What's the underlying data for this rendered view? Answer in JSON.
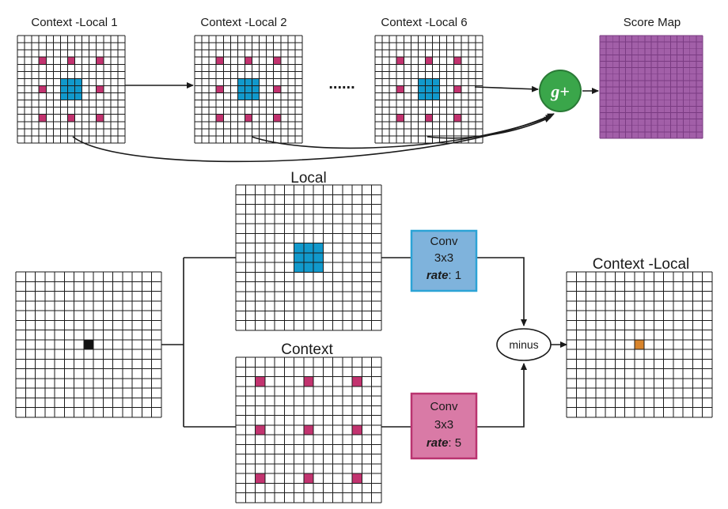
{
  "top_row": {
    "grids": [
      {
        "label": "Context -Local 1"
      },
      {
        "label": "Context -Local  2"
      },
      {
        "label": "Context -Local 6"
      }
    ],
    "ellipsis": "......",
    "combine_label": "g+",
    "score_map_label": "Score Map"
  },
  "bottom": {
    "local_label": "Local",
    "context_label": "Context",
    "output_label": "Context -Local",
    "conv_local": {
      "line1": "Conv",
      "line2": "3x3",
      "rate_key": "rate",
      "rate_value": ": 1"
    },
    "conv_context": {
      "line1": "Conv",
      "line2": "3x3",
      "rate_key": "rate",
      "rate_value": ": 5"
    },
    "minus_label": "minus"
  },
  "colors": {
    "blue": "#1199cc",
    "magenta": "#c2336f",
    "purple": "#a25fa8",
    "green": "#3aa64a",
    "orange": "#d8842c",
    "conv_local_fill": "#7fb3dc",
    "conv_local_border": "#2ba3d6",
    "conv_context_fill": "#d97aa6",
    "conv_context_border": "#b9336f"
  }
}
